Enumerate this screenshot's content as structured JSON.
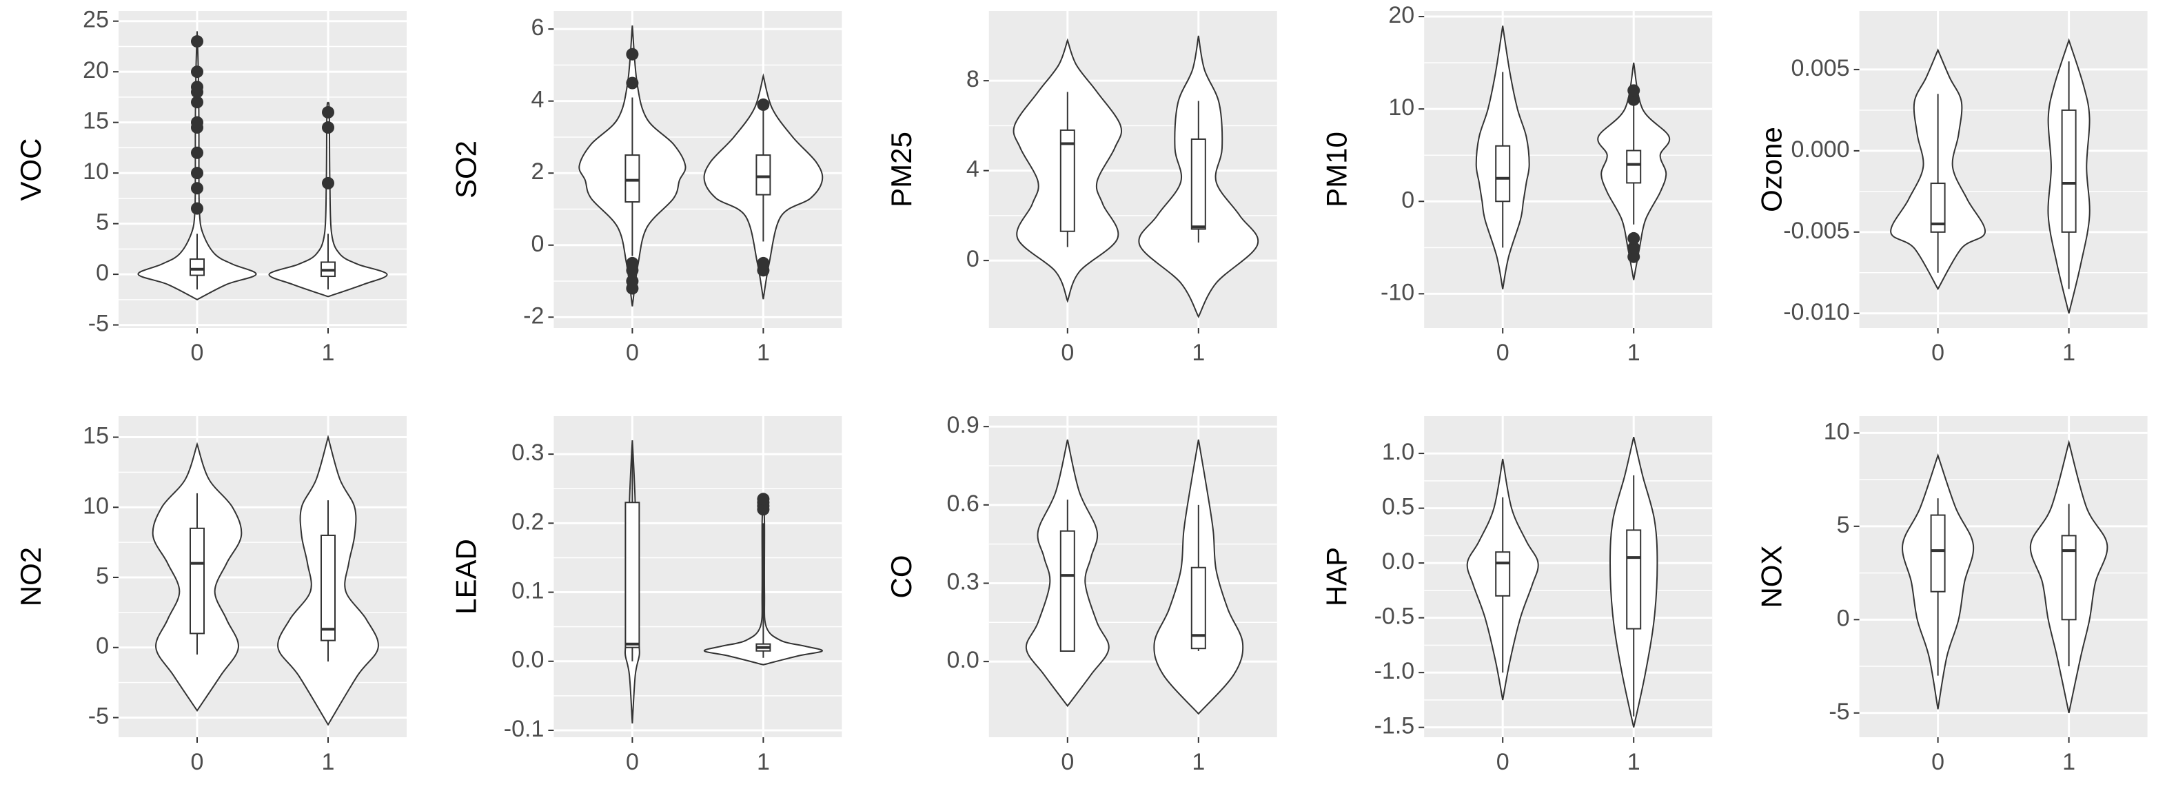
{
  "chart_data": [
    {
      "type": "violin",
      "y_label": "VOC",
      "categories": [
        "0",
        "1"
      ],
      "ylim": [
        -5.3,
        26
      ],
      "yticks": [
        -5,
        0,
        5,
        10,
        15,
        20,
        25
      ],
      "groups": [
        {
          "violin": {
            "y": [
              -2.5,
              -1,
              0,
              1,
              2,
              4,
              6,
              10,
              15,
              20,
              24
            ],
            "width": [
              0,
              0.5,
              1,
              0.6,
              0.3,
              0.1,
              0.04,
              0.03,
              0.03,
              0.02,
              0
            ]
          },
          "box": {
            "lower_whisker": -1.5,
            "q1": -0.1,
            "median": 0.5,
            "q3": 1.5,
            "upper_whisker": 4
          },
          "outliers": [
            6.5,
            8.5,
            10,
            12,
            14.5,
            15,
            17,
            18,
            18.5,
            20,
            23
          ]
        },
        {
          "violin": {
            "y": [
              -2.2,
              -1,
              0,
              1,
              2,
              4,
              9,
              16,
              17
            ],
            "width": [
              0,
              0.6,
              1,
              0.5,
              0.2,
              0.06,
              0.03,
              0.02,
              0
            ]
          },
          "box": {
            "lower_whisker": -1.5,
            "q1": -0.2,
            "median": 0.4,
            "q3": 1.2,
            "upper_whisker": 4
          },
          "outliers": [
            9,
            14.5,
            16
          ]
        }
      ]
    },
    {
      "type": "violin",
      "y_label": "SO2",
      "categories": [
        "0",
        "1"
      ],
      "ylim": [
        -2.3,
        6.5
      ],
      "yticks": [
        -2,
        0,
        2,
        4,
        6
      ],
      "groups": [
        {
          "violin": {
            "y": [
              -1.7,
              -0.5,
              0.5,
              1.3,
              1.8,
              2.2,
              2.8,
              3.5,
              4.5,
              6.1
            ],
            "width": [
              0,
              0.1,
              0.25,
              0.7,
              0.8,
              0.9,
              0.7,
              0.25,
              0.08,
              0
            ]
          },
          "box": {
            "lower_whisker": -0.3,
            "q1": 1.2,
            "median": 1.8,
            "q3": 2.5,
            "upper_whisker": 4.1
          },
          "outliers": [
            -1.2,
            -1,
            -0.7,
            -0.5,
            4.5,
            5.3
          ]
        },
        {
          "violin": {
            "y": [
              -1.5,
              -0.5,
              0.8,
              1.3,
              1.8,
              2.3,
              3,
              3.8,
              4.7
            ],
            "width": [
              0,
              0.1,
              0.3,
              0.8,
              1,
              0.9,
              0.5,
              0.15,
              0
            ]
          },
          "box": {
            "lower_whisker": 0.1,
            "q1": 1.4,
            "median": 1.9,
            "q3": 2.5,
            "upper_whisker": 3.8
          },
          "outliers": [
            -0.7,
            -0.5,
            3.9
          ]
        }
      ]
    },
    {
      "type": "violin",
      "y_label": "PM25",
      "categories": [
        "0",
        "1"
      ],
      "ylim": [
        -3,
        11.1
      ],
      "yticks": [
        0,
        4,
        8
      ],
      "groups": [
        {
          "violin": {
            "y": [
              -1.8,
              -0.5,
              1,
              2.5,
              3.5,
              5,
              6,
              7.5,
              8.7,
              9.8
            ],
            "width": [
              0,
              0.2,
              0.85,
              0.6,
              0.5,
              0.8,
              0.9,
              0.5,
              0.15,
              0
            ]
          },
          "box": {
            "lower_whisker": 0.6,
            "q1": 1.3,
            "median": 5.2,
            "q3": 5.8,
            "upper_whisker": 7.5
          },
          "outliers": []
        },
        {
          "violin": {
            "y": [
              -2.5,
              -1,
              0.7,
              2,
              3.5,
              5,
              7,
              8.5,
              10
            ],
            "width": [
              0,
              0.3,
              1,
              0.7,
              0.3,
              0.4,
              0.35,
              0.1,
              0
            ]
          },
          "box": {
            "lower_whisker": 0.8,
            "q1": 1.4,
            "median": 1.5,
            "q3": 5.4,
            "upper_whisker": 7.1
          },
          "outliers": []
        }
      ]
    },
    {
      "type": "violin",
      "y_label": "PM10",
      "categories": [
        "0",
        "1"
      ],
      "ylim": [
        -13.7,
        20.6
      ],
      "yticks": [
        -10,
        0,
        10,
        20
      ],
      "groups": [
        {
          "violin": {
            "y": [
              -9.5,
              -6,
              -2,
              0,
              2,
              4,
              7,
              10,
              14,
              19
            ],
            "width": [
              0,
              0.1,
              0.3,
              0.35,
              0.4,
              0.45,
              0.4,
              0.25,
              0.12,
              0
            ]
          },
          "box": {
            "lower_whisker": -5,
            "q1": 0,
            "median": 2.5,
            "q3": 6,
            "upper_whisker": 14
          },
          "outliers": []
        },
        {
          "violin": {
            "y": [
              -8.5,
              -5,
              -2,
              1,
              3,
              5,
              7,
              10,
              15
            ],
            "width": [
              0,
              0.1,
              0.2,
              0.45,
              0.55,
              0.45,
              0.6,
              0.15,
              0
            ]
          },
          "box": {
            "lower_whisker": -2.5,
            "q1": 2,
            "median": 4,
            "q3": 5.5,
            "upper_whisker": 10.5
          },
          "outliers": [
            -6,
            -5,
            -4,
            11,
            12
          ]
        }
      ]
    },
    {
      "type": "violin",
      "y_label": "Ozone",
      "categories": [
        "0",
        "1"
      ],
      "ylim": [
        -0.0109,
        0.0086
      ],
      "yticks": [
        {
          "value": -0.01,
          "label": "-0.010"
        },
        -0.005,
        {
          "value": 0,
          "label": "0.000"
        },
        0.005
      ],
      "groups": [
        {
          "violin": {
            "y": [
              -0.0085,
              -0.006,
              -0.005,
              -0.003,
              -0.001,
              0.001,
              0.003,
              0.0045,
              0.0062
            ],
            "width": [
              0,
              0.4,
              0.8,
              0.5,
              0.25,
              0.35,
              0.4,
              0.2,
              0
            ]
          },
          "box": {
            "lower_whisker": -0.0075,
            "q1": -0.005,
            "median": -0.0045,
            "q3": -0.002,
            "upper_whisker": 0.0035
          },
          "outliers": []
        },
        {
          "violin": {
            "y": [
              -0.01,
              -0.007,
              -0.004,
              -0.001,
              0.002,
              0.004,
              0.0068
            ],
            "width": [
              0,
              0.2,
              0.35,
              0.3,
              0.35,
              0.25,
              0
            ]
          },
          "box": {
            "lower_whisker": -0.0085,
            "q1": -0.005,
            "median": -0.002,
            "q3": 0.0025,
            "upper_whisker": 0.0055
          },
          "outliers": []
        }
      ]
    },
    {
      "type": "violin",
      "y_label": "NO2",
      "categories": [
        "0",
        "1"
      ],
      "ylim": [
        -6.4,
        16.5
      ],
      "yticks": [
        -5,
        0,
        5,
        10,
        15
      ],
      "groups": [
        {
          "violin": {
            "y": [
              -4.5,
              -2,
              0,
              2,
              4,
              6,
              8,
              10,
              12,
              14.5
            ],
            "width": [
              0,
              0.4,
              0.7,
              0.5,
              0.3,
              0.5,
              0.75,
              0.6,
              0.2,
              0
            ]
          },
          "box": {
            "lower_whisker": -0.5,
            "q1": 1,
            "median": 6,
            "q3": 8.5,
            "upper_whisker": 11
          },
          "outliers": []
        },
        {
          "violin": {
            "y": [
              -5.5,
              -2,
              0,
              2,
              4,
              6,
              8,
              10,
              12,
              15
            ],
            "width": [
              0,
              0.5,
              0.85,
              0.65,
              0.3,
              0.35,
              0.45,
              0.45,
              0.2,
              0
            ]
          },
          "box": {
            "lower_whisker": -1,
            "q1": 0.5,
            "median": 1.3,
            "q3": 8,
            "upper_whisker": 10.5
          },
          "outliers": []
        }
      ]
    },
    {
      "type": "violin",
      "y_label": "LEAD",
      "categories": [
        "0",
        "1"
      ],
      "ylim": [
        -0.11,
        0.355
      ],
      "yticks": [
        -0.1,
        {
          "value": 0,
          "label": "0.0"
        },
        0.1,
        0.2,
        0.3
      ],
      "groups": [
        {
          "violin": {
            "y": [
              -0.09,
              -0.02,
              0.01,
              0.03,
              0.06,
              0.1,
              0.18,
              0.22,
              0.27,
              0.32
            ],
            "width": [
              0,
              0.05,
              0.12,
              0.1,
              0.06,
              0.03,
              0.03,
              0.05,
              0.03,
              0
            ]
          },
          "box": {
            "lower_whisker": 0,
            "q1": 0.02,
            "median": 0.025,
            "q3": 0.23,
            "upper_whisker": 0.3
          },
          "outliers": []
        },
        {
          "violin": {
            "y": [
              -0.005,
              0.008,
              0.015,
              0.022,
              0.03,
              0.05,
              0.1,
              0.2,
              0.24
            ],
            "width": [
              0,
              0.6,
              1,
              0.7,
              0.3,
              0.05,
              0.02,
              0.02,
              0
            ]
          },
          "box": {
            "lower_whisker": 0.005,
            "q1": 0.015,
            "median": 0.02,
            "q3": 0.025,
            "upper_whisker": 0.2
          },
          "outliers": [
            0.22,
            0.225,
            0.23,
            0.235
          ]
        }
      ]
    },
    {
      "type": "violin",
      "y_label": "CO",
      "categories": [
        "0",
        "1"
      ],
      "ylim": [
        -0.29,
        0.94
      ],
      "yticks": [
        {
          "value": 0,
          "label": "0.0"
        },
        0.3,
        0.6,
        0.9
      ],
      "groups": [
        {
          "violin": {
            "y": [
              -0.17,
              -0.05,
              0.05,
              0.15,
              0.3,
              0.4,
              0.5,
              0.65,
              0.85
            ],
            "width": [
              0,
              0.4,
              0.7,
              0.5,
              0.3,
              0.4,
              0.5,
              0.2,
              0
            ]
          },
          "box": {
            "lower_whisker": 0.04,
            "q1": 0.04,
            "median": 0.33,
            "q3": 0.5,
            "upper_whisker": 0.62
          },
          "outliers": []
        },
        {
          "violin": {
            "y": [
              -0.2,
              -0.05,
              0.07,
              0.2,
              0.35,
              0.5,
              0.65,
              0.85
            ],
            "width": [
              0,
              0.6,
              0.75,
              0.5,
              0.3,
              0.25,
              0.15,
              0
            ]
          },
          "box": {
            "lower_whisker": 0.04,
            "q1": 0.05,
            "median": 0.1,
            "q3": 0.36,
            "upper_whisker": 0.6
          },
          "outliers": []
        }
      ]
    },
    {
      "type": "violin",
      "y_label": "HAP",
      "categories": [
        "0",
        "1"
      ],
      "ylim": [
        -1.59,
        1.34
      ],
      "yticks": [
        -1.5,
        {
          "value": -1,
          "label": "-1.0"
        },
        -0.5,
        {
          "value": 0,
          "label": "0.0"
        },
        0.5,
        {
          "value": 1,
          "label": "1.0"
        }
      ],
      "groups": [
        {
          "violin": {
            "y": [
              -1.25,
              -0.9,
              -0.5,
              -0.2,
              0,
              0.2,
              0.5,
              0.95
            ],
            "width": [
              0,
              0.12,
              0.3,
              0.5,
              0.6,
              0.4,
              0.15,
              0
            ]
          },
          "box": {
            "lower_whisker": -1,
            "q1": -0.3,
            "median": 0,
            "q3": 0.1,
            "upper_whisker": 0.6
          },
          "outliers": []
        },
        {
          "violin": {
            "y": [
              -1.5,
              -1,
              -0.5,
              0,
              0.4,
              0.8,
              1.15
            ],
            "width": [
              0,
              0.2,
              0.35,
              0.4,
              0.35,
              0.15,
              0
            ]
          },
          "box": {
            "lower_whisker": -1.4,
            "q1": -0.6,
            "median": 0.05,
            "q3": 0.3,
            "upper_whisker": 0.8
          },
          "outliers": []
        }
      ]
    },
    {
      "type": "violin",
      "y_label": "NOX",
      "categories": [
        "0",
        "1"
      ],
      "ylim": [
        -6.3,
        10.9
      ],
      "yticks": [
        -5,
        0,
        5,
        10
      ],
      "groups": [
        {
          "violin": {
            "y": [
              -4.8,
              -2,
              0,
              2,
              4,
              6,
              8.8
            ],
            "width": [
              0,
              0.15,
              0.35,
              0.45,
              0.6,
              0.3,
              0
            ]
          },
          "box": {
            "lower_whisker": -3,
            "q1": 1.5,
            "median": 3.7,
            "q3": 5.6,
            "upper_whisker": 6.5
          },
          "outliers": []
        },
        {
          "violin": {
            "y": [
              -5,
              -2,
              0,
              2,
              4,
              6,
              9.5
            ],
            "width": [
              0,
              0.2,
              0.35,
              0.45,
              0.65,
              0.3,
              0
            ]
          },
          "box": {
            "lower_whisker": -2.5,
            "q1": 0,
            "median": 3.7,
            "q3": 4.5,
            "upper_whisker": 6.2
          },
          "outliers": []
        }
      ]
    }
  ]
}
